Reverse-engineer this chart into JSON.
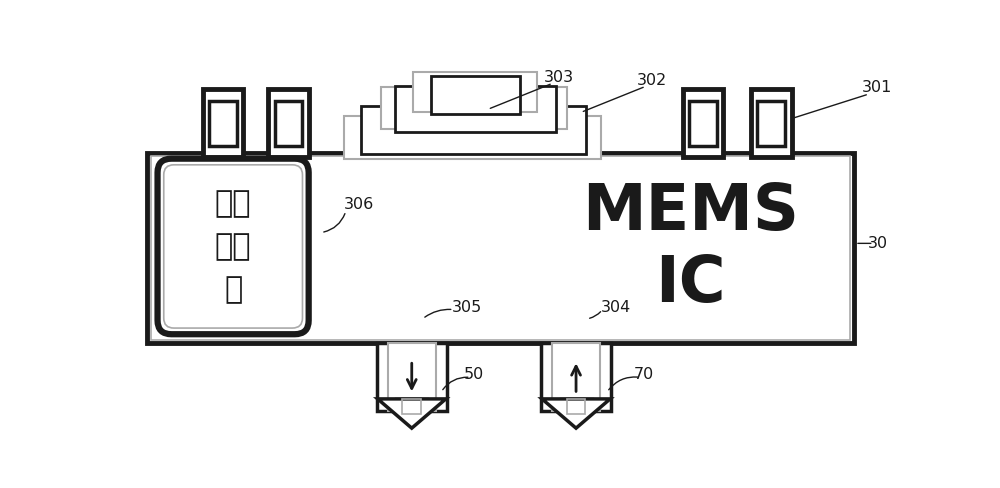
{
  "fig_width": 10.0,
  "fig_height": 4.88,
  "bg_color": "#ffffff",
  "line_color": "#1a1a1a",
  "gray_color": "#aaaaaa",
  "dark_gray": "#666666",
  "sensor_label": "温度\n感应\n器",
  "mems_label": "MEMS\nIC",
  "label_30": "30",
  "label_301": "301",
  "label_302": "302",
  "label_303": "303",
  "label_304": "304",
  "label_305": "305",
  "label_306": "306",
  "label_50": "50",
  "label_70": "70"
}
